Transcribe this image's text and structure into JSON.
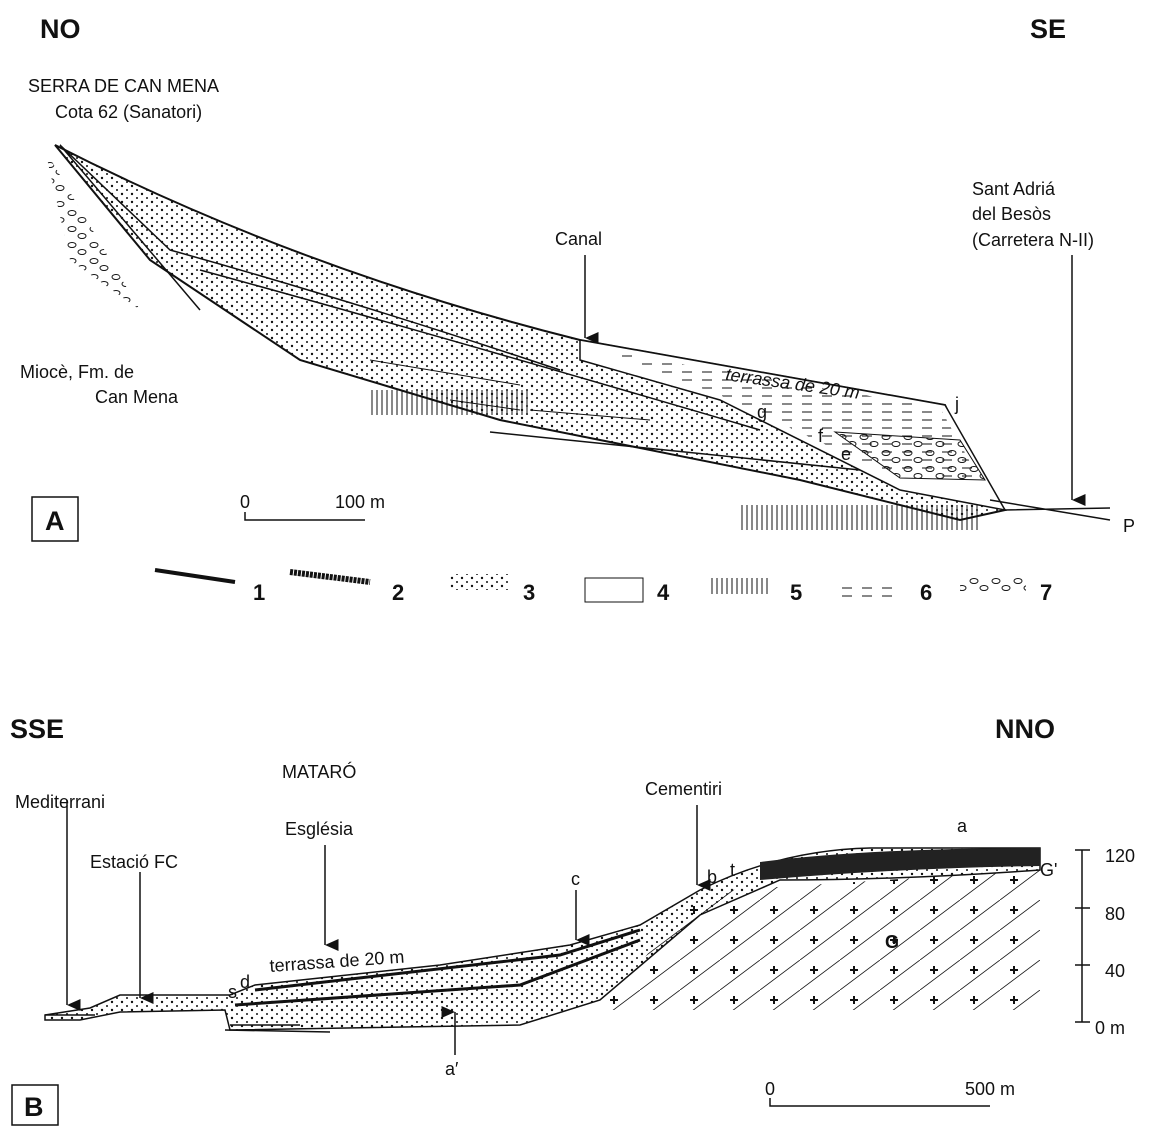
{
  "panel_a": {
    "label": "A",
    "left_direction": "NO",
    "right_direction": "SE",
    "summit": [
      "SERRA DE CAN MENA",
      "Cota 62 (Sanatori)"
    ],
    "end_place": [
      "Sant Adriá",
      "del Besòs",
      "(Carretera N-II)"
    ],
    "canal": "Canal",
    "terrace": "terrassa de 20 m",
    "miocene": [
      "Miocè, Fm. de",
      "Can Mena"
    ],
    "points": {
      "j": "j",
      "g": "g",
      "f": "f",
      "e": "e",
      "p": "P"
    },
    "scale": {
      "start": "0",
      "end": "100 m"
    },
    "legend": [
      "1",
      "2",
      "3",
      "4",
      "5",
      "6",
      "7"
    ]
  },
  "panel_b": {
    "label": "B",
    "left_direction": "SSE",
    "right_direction": "NNO",
    "town": "MATARÓ",
    "sea": "Mediterrani",
    "station": "Estació FC",
    "church": "Església",
    "cemetery": "Cementiri",
    "terrace": "terrassa de 20 m",
    "points": {
      "a": "a",
      "c": "c",
      "b": "b",
      "t": "t",
      "g_prime": "G'",
      "g": "G",
      "s": "s",
      "d": "d",
      "a_prime": "a′"
    },
    "scale": {
      "start": "0",
      "end": "500 m"
    },
    "height_scale": [
      "120",
      "80",
      "40",
      "0 m"
    ]
  }
}
